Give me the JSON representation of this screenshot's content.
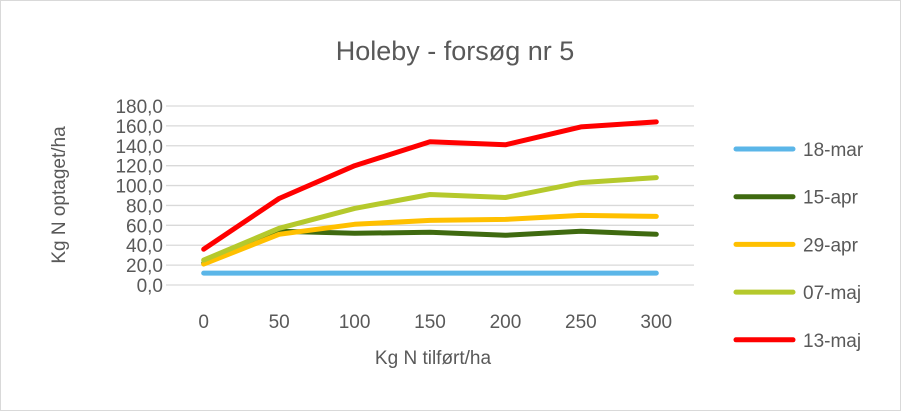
{
  "chart_data": {
    "type": "line",
    "title": "Holeby - forsøg nr 5",
    "xlabel": "Kg N tilført/ha",
    "ylabel": "Kg N optaget/ha",
    "x": [
      0,
      50,
      100,
      150,
      200,
      250,
      300
    ],
    "x_tick_labels": [
      "0",
      "50",
      "100",
      "150",
      "200",
      "250",
      "300"
    ],
    "ylim": [
      0,
      180
    ],
    "y_ticks": [
      0,
      20,
      40,
      60,
      80,
      100,
      120,
      140,
      160,
      180
    ],
    "y_tick_labels": [
      "0,0",
      "20,0",
      "40,0",
      "60,0",
      "80,0",
      "100,0",
      "120,0",
      "140,0",
      "160,0",
      "180,0"
    ],
    "grid": true,
    "legend_position": "right",
    "series": [
      {
        "name": "18-mar",
        "color": "#5bb6e8",
        "values": [
          12,
          12,
          12,
          12,
          12,
          12,
          12
        ]
      },
      {
        "name": "15-apr",
        "color": "#3f6a10",
        "values": [
          22,
          54,
          52,
          53,
          50,
          54,
          51
        ]
      },
      {
        "name": "29-apr",
        "color": "#ffc000",
        "values": [
          21,
          51,
          61,
          65,
          66,
          70,
          69
        ]
      },
      {
        "name": "07-maj",
        "color": "#b5c92c",
        "values": [
          25,
          57,
          77,
          91,
          88,
          103,
          108
        ]
      },
      {
        "name": "13-maj",
        "color": "#ff0000",
        "values": [
          36,
          87,
          120,
          144,
          141,
          159,
          164
        ]
      }
    ]
  }
}
